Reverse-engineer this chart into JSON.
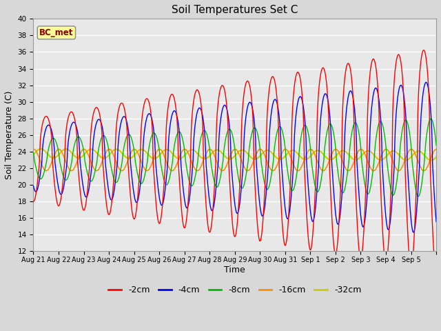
{
  "title": "Soil Temperatures Set C",
  "xlabel": "Time",
  "ylabel": "Soil Temperature (C)",
  "ylim": [
    12,
    40
  ],
  "yticks": [
    12,
    14,
    16,
    18,
    20,
    22,
    24,
    26,
    28,
    30,
    32,
    34,
    36,
    38,
    40
  ],
  "x_labels": [
    "Aug 21",
    "Aug 22",
    "Aug 23",
    "Aug 24",
    "Aug 25",
    "Aug 26",
    "Aug 27",
    "Aug 28",
    "Aug 29",
    "Aug 30",
    "Aug 31",
    "Sep 1",
    "Sep 2",
    "Sep 3",
    "Sep 4",
    "Sep 5"
  ],
  "annotation_text": "BC_met",
  "annotation_color": "#8B0000",
  "annotation_bg": "#FFFF99",
  "series": [
    {
      "label": "-2cm",
      "color": "#FF0000"
    },
    {
      "label": "-4cm",
      "color": "#0000FF"
    },
    {
      "label": "-8cm",
      "color": "#00BB00"
    },
    {
      "label": "-16cm",
      "color": "#FF8C00"
    },
    {
      "label": "-32cm",
      "color": "#CCCC00"
    }
  ],
  "background_color": "#E8E8E8",
  "grid_color": "#FFFFFF",
  "title_fontsize": 11,
  "axis_fontsize": 9,
  "legend_fontsize": 9,
  "figsize": [
    6.4,
    4.8
  ],
  "dpi": 100
}
